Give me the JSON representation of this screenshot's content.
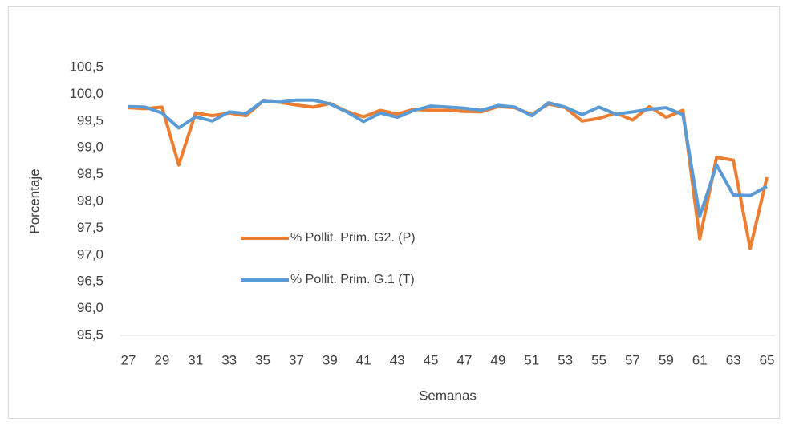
{
  "chart_data": {
    "type": "line",
    "x_label": "Semanas",
    "y_label": "Porcentaje",
    "x": [
      27,
      28,
      29,
      30,
      31,
      32,
      33,
      34,
      35,
      36,
      37,
      38,
      39,
      40,
      41,
      42,
      43,
      44,
      45,
      46,
      47,
      48,
      49,
      50,
      51,
      52,
      53,
      54,
      55,
      56,
      57,
      58,
      59,
      60,
      61,
      62,
      63,
      64,
      65
    ],
    "xlim": [
      26.5,
      65.5
    ],
    "xticks": [
      27,
      29,
      31,
      33,
      35,
      37,
      39,
      41,
      43,
      45,
      47,
      49,
      51,
      53,
      55,
      57,
      59,
      61,
      63,
      65
    ],
    "ylim": [
      95.5,
      100.5
    ],
    "yticks": [
      {
        "value": 95.5,
        "label": "95,5"
      },
      {
        "value": 96,
        "label": "96,0"
      },
      {
        "value": 96.5,
        "label": "96,5"
      },
      {
        "value": 97,
        "label": "97,0"
      },
      {
        "value": 97.5,
        "label": "97,5"
      },
      {
        "value": 98,
        "label": "98,0"
      },
      {
        "value": 98.5,
        "label": "98,5"
      },
      {
        "value": 99,
        "label": "99,0"
      },
      {
        "value": 99.5,
        "label": "99,5"
      },
      {
        "value": 100,
        "label": "100,0"
      },
      {
        "value": 100.5,
        "label": "100,5"
      }
    ],
    "grid": false,
    "legend": "inside-left",
    "series": [
      {
        "name": "% Pollit. Prim. G2. (P)",
        "color": "#ed7d31",
        "values": [
          99.75,
          99.73,
          99.76,
          98.68,
          99.65,
          99.6,
          99.65,
          99.6,
          99.87,
          99.85,
          99.8,
          99.76,
          99.83,
          99.68,
          99.58,
          99.7,
          99.63,
          99.72,
          99.7,
          99.7,
          99.68,
          99.67,
          99.77,
          99.75,
          99.62,
          99.82,
          99.75,
          99.5,
          99.55,
          99.65,
          99.52,
          99.77,
          99.57,
          99.7,
          97.3,
          98.82,
          98.77,
          97.12,
          98.45
        ]
      },
      {
        "name": "% Pollit. Prim. G.1 (T)",
        "color": "#5b9bd5",
        "values": [
          99.77,
          99.76,
          99.65,
          99.37,
          99.58,
          99.5,
          99.67,
          99.64,
          99.87,
          99.85,
          99.89,
          99.89,
          99.82,
          99.67,
          99.49,
          99.65,
          99.57,
          99.7,
          99.78,
          99.76,
          99.74,
          99.7,
          99.79,
          99.76,
          99.6,
          99.84,
          99.76,
          99.62,
          99.76,
          99.63,
          99.67,
          99.72,
          99.75,
          99.62,
          97.72,
          98.68,
          98.12,
          98.11,
          98.28
        ]
      }
    ]
  }
}
